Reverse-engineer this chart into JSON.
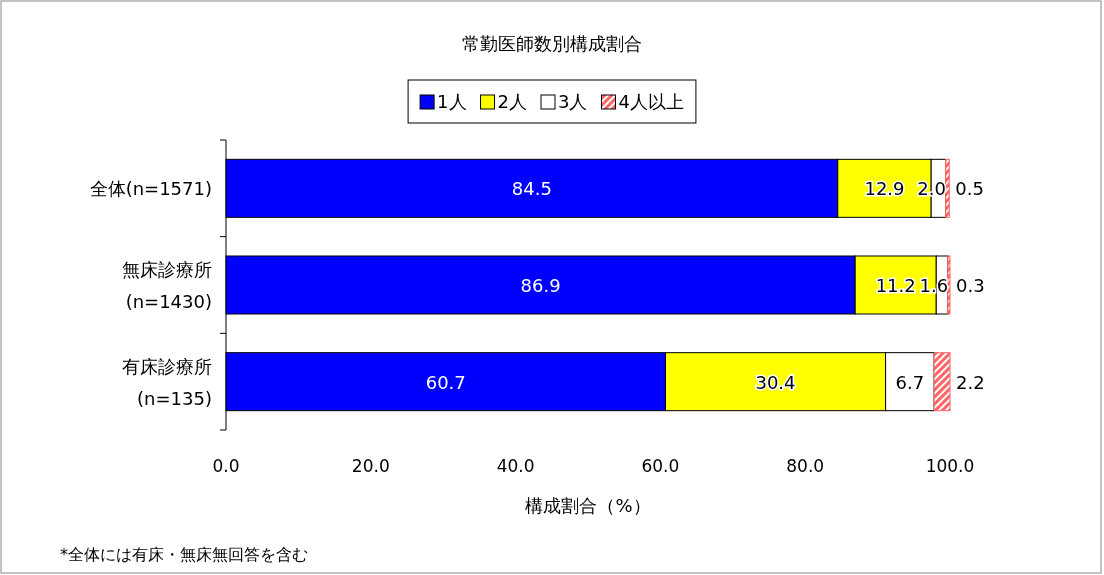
{
  "chart_data": {
    "type": "bar",
    "orientation": "horizontal",
    "stacked": true,
    "title": "常勤医師数別構成割合",
    "xlabel": "構成割合（%）",
    "categories": [
      "全体(n=1571)",
      "無床診療所\n(n=1430)",
      "有床診療所\n(n=135)"
    ],
    "xlim": [
      0,
      100
    ],
    "xticks": [
      {
        "value": 0,
        "label": "0.0"
      },
      {
        "value": 20,
        "label": "20.0"
      },
      {
        "value": 40,
        "label": "40.0"
      },
      {
        "value": 60,
        "label": "60.0"
      },
      {
        "value": 80,
        "label": "80.0"
      },
      {
        "value": 100,
        "label": "100.0"
      }
    ],
    "series": [
      {
        "name": "1人",
        "color": "#0000ff",
        "values": [
          84.5,
          86.9,
          60.7
        ],
        "value_labels": [
          "84.5",
          "86.9",
          "60.7"
        ]
      },
      {
        "name": "2人",
        "color": "#ffff00",
        "values": [
          12.9,
          11.2,
          30.4
        ],
        "value_labels": [
          "12.9",
          "11.2",
          "30.4"
        ]
      },
      {
        "name": "3人",
        "color": "#ffffff",
        "values": [
          2.0,
          1.6,
          6.7
        ],
        "value_labels": [
          "2.0",
          "1.6",
          "6.7"
        ]
      },
      {
        "name": "4人以上",
        "color": "#ff6666",
        "values": [
          0.5,
          0.3,
          2.2
        ],
        "value_labels": [
          "0.5",
          "0.3",
          "2.2"
        ]
      }
    ],
    "legend": "top",
    "grid": false,
    "annotations": [
      "*全体には有床・無床無回答を含む"
    ]
  }
}
